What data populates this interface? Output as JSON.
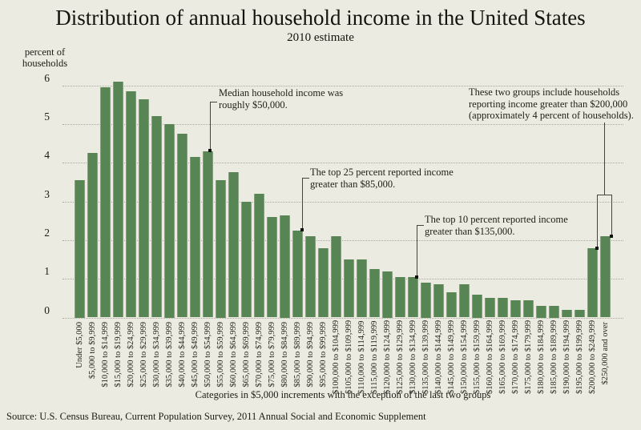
{
  "title": "Distribution of annual household income in the United States",
  "subtitle": "2010 estimate",
  "y_axis": {
    "unit_label": [
      "percent of",
      "households"
    ],
    "ticks": [
      0,
      1,
      2,
      3,
      4,
      5,
      6
    ]
  },
  "chart_data": {
    "type": "bar",
    "title": "Distribution of annual household income in the United States",
    "subtitle": "2010 estimate",
    "ylabel": "percent of households",
    "xlabel": "Categories in $5,000 increments with the exception of the last two groups",
    "ylim": [
      0,
      6.5
    ],
    "yticks": [
      0,
      1,
      2,
      3,
      4,
      5,
      6
    ],
    "grid": "horizontal dotted",
    "legend": "none",
    "bar_color": "#578654",
    "background_color": "#ecebe1",
    "categories": [
      "Under $5,000",
      "$5,000 to $9,999",
      "$10,000 to $14,999",
      "$15,000 to $19,999",
      "$20,000 to $24,999",
      "$25,000 to $29,999",
      "$30,000 to $34,999",
      "$35,000 to $39,999",
      "$40,000 to $44,999",
      "$45,000 to $49,999",
      "$50,000 to $54,999",
      "$55,000 to $59,999",
      "$60,000 to $64,999",
      "$65,000 to $69,999",
      "$70,000 to $74,999",
      "$75,000 to $79,999",
      "$80,000 to $84,999",
      "$85,000 to $89,999",
      "$90,000 to $94,999",
      "$95,000 to $99,999",
      "$100,000 to $104,999",
      "$105,000 to $109,999",
      "$110,000 to $114,999",
      "$115,000 to $119,999",
      "$120,000 to $124,999",
      "$125,000 to $129,999",
      "$130,000 to $134,999",
      "$135,000 to $139,999",
      "$140,000 to $144,999",
      "$145,000 to $149,999",
      "$150,000 to $154,999",
      "$155,000 to $159,999",
      "$160,000 to $164,999",
      "$165,000 to $169,999",
      "$170,000 to $174,999",
      "$175,000 to $179,999",
      "$180,000 to $184,999",
      "$185,000 to $189,999",
      "$190,000 to $194,999",
      "$195,000 to $199,999",
      "$200,000 to $249,999",
      "$250,000 and over"
    ],
    "values": [
      3.55,
      4.25,
      5.95,
      6.1,
      5.85,
      5.65,
      5.2,
      5.0,
      4.75,
      4.15,
      4.3,
      3.55,
      3.75,
      3.0,
      3.2,
      2.6,
      2.65,
      2.25,
      2.1,
      1.8,
      2.1,
      1.5,
      1.5,
      1.25,
      1.2,
      1.05,
      1.05,
      0.9,
      0.85,
      0.65,
      0.85,
      0.6,
      0.5,
      0.5,
      0.45,
      0.45,
      0.3,
      0.3,
      0.2,
      0.2,
      1.8,
      2.1
    ]
  },
  "annotations": [
    {
      "id": "median",
      "lines": [
        "Median household income was",
        "roughly $50,000."
      ]
    },
    {
      "id": "top25",
      "lines": [
        "The top 25 percent reported income",
        "greater than $85,000."
      ]
    },
    {
      "id": "top10",
      "lines": [
        "The top 10 percent reported income",
        "greater than $135,000."
      ]
    },
    {
      "id": "top-two-groups",
      "lines": [
        "These two groups include households",
        "reporting income greater than $200,000",
        "(approximately 4 percent of households)."
      ]
    }
  ],
  "caption": "Categories in $5,000 increments with the exception of the last two groups",
  "source": "Source: U.S. Census Bureau, Current Population Survey, 2011 Annual Social and Economic Supplement"
}
